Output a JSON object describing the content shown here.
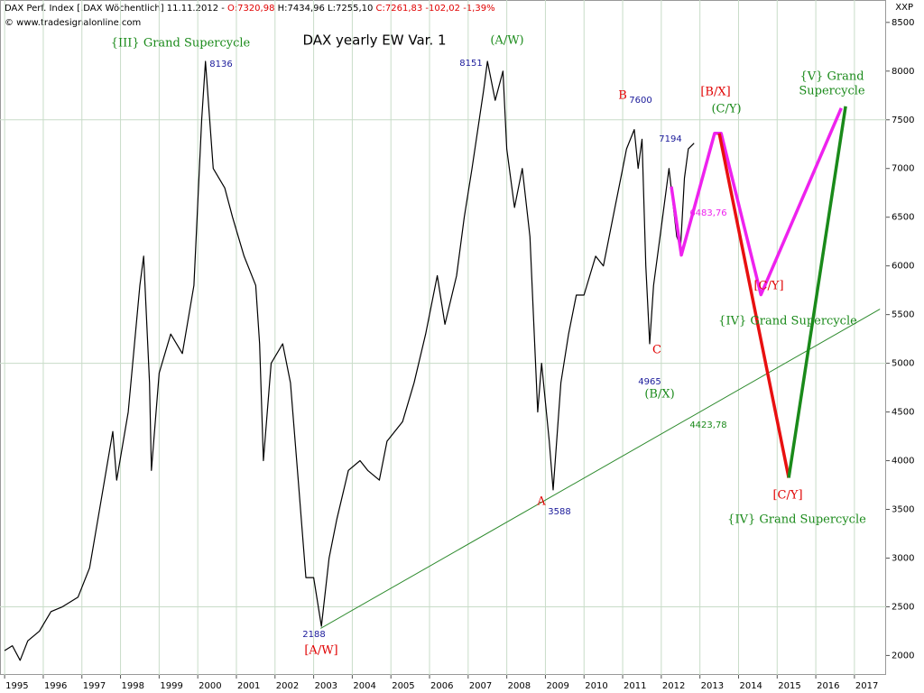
{
  "chart_data": {
    "type": "line",
    "header": [
      {
        "text": "DAX Perf. Index [.DAX  Wöchentlich] 11.11.2012 - ",
        "color": "#000000"
      },
      {
        "text": "O:7320,98",
        "color": "#e00000"
      },
      {
        "text": " H:7434,96",
        "color": "#000000"
      },
      {
        "text": " L:7255,10",
        "color": "#000000"
      },
      {
        "text": " C:7261,83 -102,02 -1,39%",
        "color": "#e00000"
      }
    ],
    "source": "© www.tradesignalonline.com",
    "y_label": "XXP",
    "xlim": [
      1994.88,
      2017.82
    ],
    "xticks": [
      1995,
      1996,
      1997,
      1998,
      1999,
      2000,
      2001,
      2002,
      2003,
      2004,
      2005,
      2006,
      2007,
      2008,
      2009,
      2010,
      2011,
      2012,
      2013,
      2014,
      2015,
      2016,
      2017
    ],
    "ylim": [
      1800,
      8730
    ],
    "yticks": [
      2000,
      2500,
      3000,
      3500,
      4000,
      4500,
      5000,
      5500,
      6000,
      6500,
      7000,
      7500,
      8000,
      8500
    ],
    "ygrid": [
      2500,
      5000,
      7500
    ],
    "grid": true,
    "series": [
      {
        "color": "#000000",
        "width": 1.2,
        "x": [
          1995.0,
          1995.2,
          1995.4,
          1995.6,
          1995.9,
          1996.2,
          1996.5,
          1996.9,
          1997.2,
          1997.5,
          1997.8,
          1997.9,
          1998.2,
          1998.5,
          1998.6,
          1998.75,
          1998.8,
          1999.0,
          1999.3,
          1999.6,
          1999.9,
          2000.1,
          2000.2,
          2000.4,
          2000.7,
          2000.9,
          2001.2,
          2001.5,
          2001.6,
          2001.7,
          2001.9,
          2002.2,
          2002.4,
          2002.6,
          2002.8,
          2003.0,
          2003.2,
          2003.4,
          2003.6,
          2003.9,
          2004.2,
          2004.4,
          2004.7,
          2004.9,
          2005.3,
          2005.6,
          2005.9,
          2006.2,
          2006.4,
          2006.7,
          2006.9,
          2007.1,
          2007.4,
          2007.5,
          2007.7,
          2007.9,
          2008.0,
          2008.2,
          2008.4,
          2008.6,
          2008.8,
          2008.9,
          2009.1,
          2009.2,
          2009.4,
          2009.6,
          2009.8,
          2010.0,
          2010.3,
          2010.5,
          2010.8,
          2011.0,
          2011.1,
          2011.3,
          2011.4,
          2011.5,
          2011.6,
          2011.7,
          2011.8,
          2012.0,
          2012.2,
          2012.4,
          2012.5,
          2012.6,
          2012.7,
          2012.85
        ],
        "values": [
          2050,
          2100,
          1950,
          2150,
          2250,
          2450,
          2500,
          2600,
          2900,
          3600,
          4300,
          3800,
          4500,
          5800,
          6100,
          4800,
          3900,
          4900,
          5300,
          5100,
          5800,
          7500,
          8100,
          7000,
          6800,
          6500,
          6100,
          5800,
          5200,
          4000,
          5000,
          5200,
          4800,
          3800,
          2800,
          2800,
          2300,
          3000,
          3400,
          3900,
          4000,
          3900,
          3800,
          4200,
          4400,
          4800,
          5300,
          5900,
          5400,
          5900,
          6500,
          7000,
          7800,
          8100,
          7700,
          8000,
          7200,
          6600,
          7000,
          6300,
          4500,
          5000,
          4200,
          3700,
          4800,
          5300,
          5700,
          5700,
          6100,
          6000,
          6600,
          7000,
          7200,
          7400,
          7000,
          7300,
          6000,
          5200,
          5800,
          6400,
          7000,
          6300,
          6200,
          6900,
          7200,
          7260
        ]
      },
      {
        "color": "#2e8b2e",
        "width": 1,
        "x": [
          2003.18,
          2017.66
        ],
        "values": [
          2278,
          5556
        ]
      },
      {
        "color": "#ee22ee",
        "width": 3.5,
        "x": [
          2012.26,
          2012.52,
          2013.38,
          2013.55,
          2014.58,
          2016.66
        ],
        "values": [
          6815,
          6111,
          7361,
          7361,
          5704,
          7620
        ]
      },
      {
        "color": "#e81010",
        "width": 3.5,
        "x": [
          2013.5,
          2015.3
        ],
        "values": [
          7361,
          3824
        ]
      },
      {
        "color": "#1a8a1a",
        "width": 3.5,
        "x": [
          2015.3,
          2016.77
        ],
        "values": [
          3824,
          7639
        ]
      }
    ],
    "annotations": [
      {
        "text": "{III} Grand Supercycle",
        "color": "#1a8a1a"
      },
      {
        "text": "DAX yearly EW Var. 1",
        "color": "#000000"
      },
      {
        "text": "(A/W)",
        "color": "#1a8a1a"
      },
      {
        "text": "8136",
        "color": "#1a1a9a"
      },
      {
        "text": "8151",
        "color": "#1a1a9a"
      },
      {
        "text": "B",
        "color": "#e00000"
      },
      {
        "text": "7600",
        "color": "#1a1a9a"
      },
      {
        "text": "[B/X]",
        "color": "#e00000"
      },
      {
        "text": "(C/Y)",
        "color": "#1a8a1a"
      },
      {
        "text": "{V} Grand",
        "color": "#1a8a1a"
      },
      {
        "text": "Supercycle",
        "color": "#1a8a1a"
      },
      {
        "text": "7194",
        "color": "#1a1a9a"
      },
      {
        "text": "6483,76",
        "color": "#ee22ee"
      },
      {
        "text": "C",
        "color": "#e00000"
      },
      {
        "text": "4965",
        "color": "#1a1a9a"
      },
      {
        "text": "(B/X)",
        "color": "#1a8a1a"
      },
      {
        "text": "[C/Y]",
        "color": "#e00000"
      },
      {
        "text": "{IV} Grand Supercycle",
        "color": "#1a8a1a"
      },
      {
        "text": "4423,78",
        "color": "#1a8a1a"
      },
      {
        "text": "A",
        "color": "#e00000"
      },
      {
        "text": "3588",
        "color": "#1a1a9a"
      },
      {
        "text": "[C/Y]",
        "color": "#e00000"
      },
      {
        "text": "{IV} Grand Supercycle",
        "color": "#1a8a1a"
      },
      {
        "text": "2188",
        "color": "#1a1a9a"
      },
      {
        "text": "[A/W]",
        "color": "#e00000"
      }
    ]
  }
}
